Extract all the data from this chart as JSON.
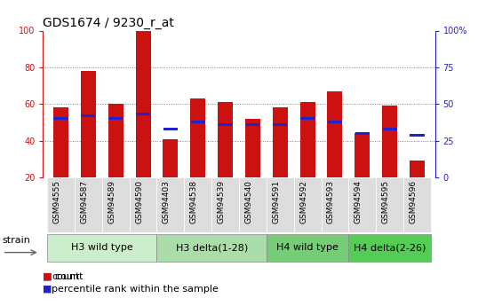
{
  "title": "GDS1674 / 9230_r_at",
  "samples": [
    "GSM94555",
    "GSM94587",
    "GSM94589",
    "GSM94590",
    "GSM94403",
    "GSM94538",
    "GSM94539",
    "GSM94540",
    "GSM94591",
    "GSM94592",
    "GSM94593",
    "GSM94594",
    "GSM94595",
    "GSM94596"
  ],
  "count_values": [
    58,
    78,
    60,
    100,
    41,
    63,
    61,
    52,
    58,
    61,
    67,
    44,
    59,
    29
  ],
  "percentile_values": [
    40,
    42,
    40,
    43,
    33,
    38,
    36,
    36,
    36,
    40,
    38,
    30,
    33,
    29
  ],
  "groups": [
    {
      "label": "H3 wild type",
      "start": 0,
      "end": 3,
      "color": "#cceecc"
    },
    {
      "label": "H3 delta(1-28)",
      "start": 4,
      "end": 7,
      "color": "#aaddaa"
    },
    {
      "label": "H4 wild type",
      "start": 8,
      "end": 10,
      "color": "#88dd88"
    },
    {
      "label": "H4 delta(2-26)",
      "start": 11,
      "end": 13,
      "color": "#55cc55"
    }
  ],
  "ylim_left": [
    20,
    100
  ],
  "ylim_right": [
    0,
    100
  ],
  "yticks_left": [
    20,
    40,
    60,
    80,
    100
  ],
  "yticks_right": [
    0,
    25,
    50,
    75,
    100
  ],
  "ytick_labels_right": [
    "0",
    "25",
    "50",
    "75",
    "100%"
  ],
  "bar_color": "#cc1111",
  "percentile_color": "#2222cc",
  "bar_width": 0.55,
  "title_fontsize": 10,
  "tick_fontsize": 7,
  "group_label_fontsize": 8,
  "legend_fontsize": 8,
  "grid_color": "black",
  "grid_linestyle": ":",
  "background_color": "#ffffff"
}
